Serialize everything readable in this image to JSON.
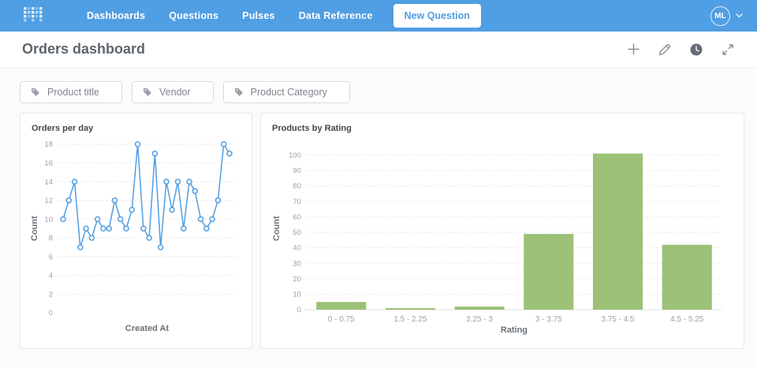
{
  "app": {
    "name": "Metabase"
  },
  "nav": {
    "bg_color": "#509EE3",
    "items": [
      {
        "label": "Dashboards"
      },
      {
        "label": "Questions"
      },
      {
        "label": "Pulses"
      },
      {
        "label": "Data Reference"
      }
    ],
    "new_question_label": "New Question",
    "avatar_initials": "ML",
    "icons": [
      "metabase-logo",
      "chevron-down-icon"
    ]
  },
  "header": {
    "title": "Orders dashboard",
    "action_icons": [
      "add-icon",
      "edit-icon",
      "history-icon",
      "fullscreen-icon"
    ]
  },
  "filters": [
    {
      "label": "Product title",
      "icon": "tag-icon"
    },
    {
      "label": "Vendor",
      "icon": "tag-icon"
    },
    {
      "label": "Product Category",
      "icon": "tag-icon"
    }
  ],
  "chart_data": [
    {
      "type": "line",
      "title": "Orders per day",
      "xlabel": "Created At",
      "ylabel": "Count",
      "ylim": [
        0,
        18
      ],
      "y_ticks": [
        0,
        2,
        4,
        6,
        8,
        10,
        12,
        14,
        16,
        18
      ],
      "grid": true,
      "line_color": "#509EE3",
      "values": [
        10,
        12,
        14,
        7,
        9,
        8,
        10,
        9,
        9,
        12,
        10,
        9,
        11,
        18,
        9,
        8,
        17,
        7,
        14,
        11,
        14,
        9,
        14,
        13,
        10,
        9,
        10,
        12,
        18,
        17
      ]
    },
    {
      "type": "bar",
      "title": "Products by Rating",
      "xlabel": "Rating",
      "ylabel": "Count",
      "ylim": [
        0,
        105
      ],
      "y_ticks": [
        0,
        10,
        20,
        30,
        40,
        50,
        60,
        70,
        80,
        90,
        100
      ],
      "grid": true,
      "bar_color": "#9CC177",
      "categories": [
        "0 - 0.75",
        "1.5 - 2.25",
        "2.25 - 3",
        "3 - 3.75",
        "3.75 - 4.5",
        "4.5 - 5.25"
      ],
      "values": [
        5,
        1,
        2,
        49,
        101,
        42
      ]
    }
  ],
  "colors": {
    "nav_blue": "#509EE3",
    "line_blue": "#509EE3",
    "bar_green": "#9CC177",
    "page_bg": "#f9fbfc",
    "grid_line": "#e7eaee",
    "tick_text": "#9ba1aa",
    "axis_label_text": "#6b727b"
  }
}
